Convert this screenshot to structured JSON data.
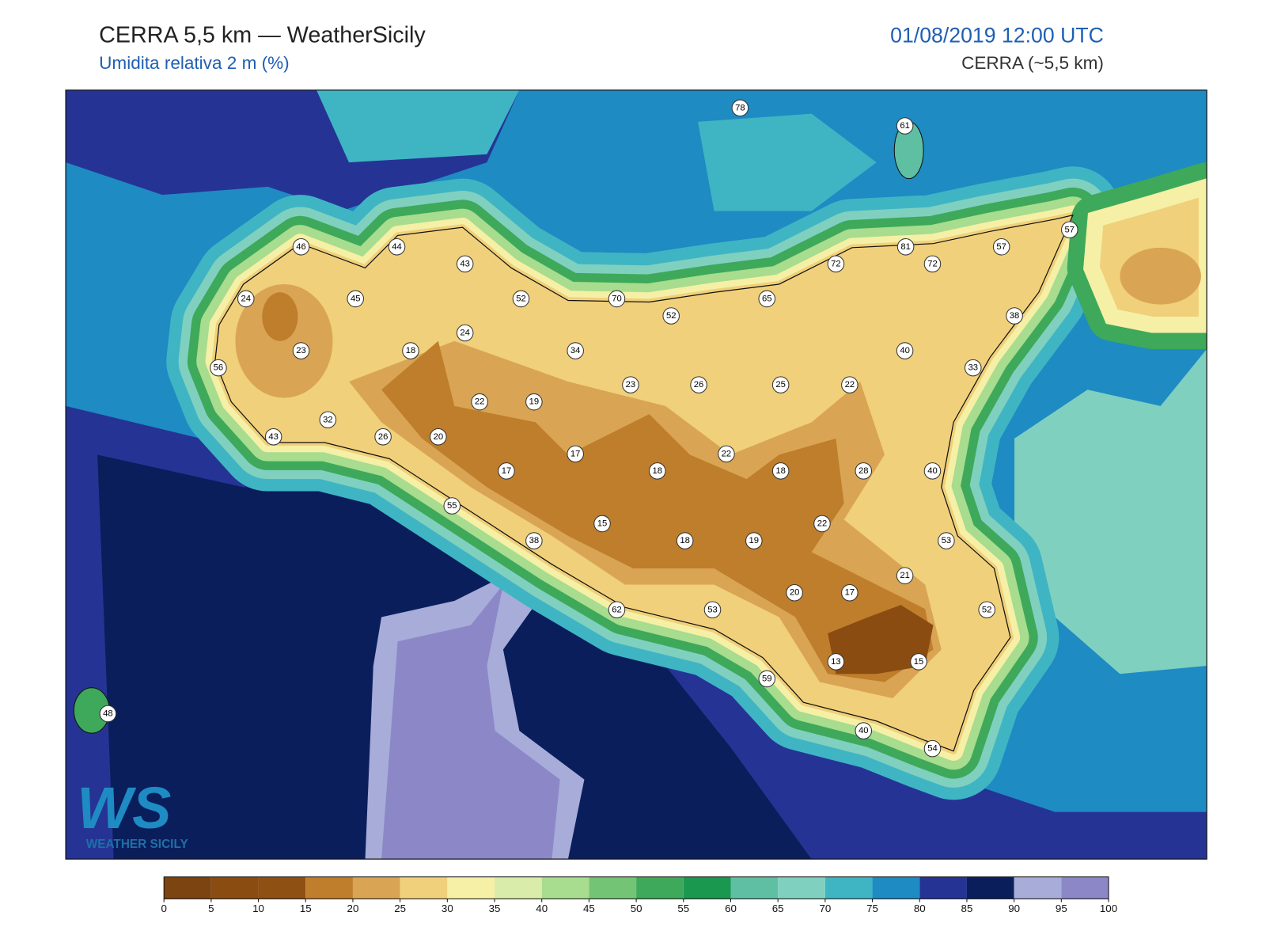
{
  "header": {
    "title": "CERRA 5,5 km — WeatherSicily",
    "subtitle": "Umidita relativa 2 m (%)",
    "datetime": "01/08/2019 12:00 UTC",
    "model": "CERRA (~5,5 km)"
  },
  "logo": {
    "mark": "WS",
    "name": "WEATHER SICILY"
  },
  "stations": [
    78,
    61,
    46,
    44,
    43,
    81,
    57,
    57,
    72,
    72,
    24,
    45,
    52,
    70,
    65,
    52,
    38,
    23,
    18,
    24,
    34,
    40,
    33,
    56,
    23,
    26,
    25,
    22,
    22,
    19,
    32,
    43,
    26,
    20,
    17,
    22,
    17,
    18,
    18,
    28,
    40,
    55,
    15,
    22,
    38,
    18,
    19,
    53,
    21,
    20,
    17,
    62,
    53,
    52,
    13,
    15,
    59,
    48,
    40,
    54
  ],
  "colorbar": {
    "ticks": [
      0,
      5,
      10,
      15,
      20,
      25,
      30,
      35,
      40,
      45,
      50,
      55,
      60,
      65,
      70,
      75,
      80,
      85,
      90,
      95,
      100
    ],
    "colors": [
      "#7b4410",
      "#8b4c12",
      "#8f5014",
      "#bf7e2c",
      "#d9a554",
      "#f0d07a",
      "#f5f0a6",
      "#d9ecaa",
      "#a8dc8e",
      "#74c476",
      "#3ea95a",
      "#1b9850",
      "#5fbfa3",
      "#80d0c0",
      "#3fb5c4",
      "#1e8bc3",
      "#253494",
      "#0b1e5c",
      "#a7acd9",
      "#8c88c8"
    ]
  }
}
